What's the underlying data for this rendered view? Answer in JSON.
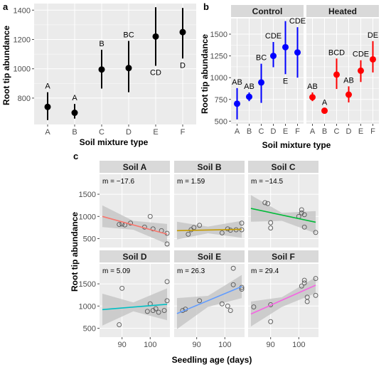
{
  "chart_data": [
    {
      "panel_label": "a",
      "type": "scatter",
      "subtype": "point-with-error-bars",
      "xlabel": "Soil mixture type",
      "ylabel": "Root tip abundance",
      "categories": [
        "A",
        "B",
        "C",
        "D",
        "E",
        "F"
      ],
      "yticks": [
        800,
        1000,
        1200,
        1400
      ],
      "ylim": [
        620,
        1445
      ],
      "points": [
        {
          "x": "A",
          "y": 740,
          "low": 650,
          "high": 840,
          "letter": "A",
          "letter_pos": "above"
        },
        {
          "x": "B",
          "y": 700,
          "low": 660,
          "high": 760,
          "letter": "A",
          "letter_pos": "above"
        },
        {
          "x": "C",
          "y": 995,
          "low": 865,
          "high": 1130,
          "letter": "B",
          "letter_pos": "above"
        },
        {
          "x": "D",
          "y": 1005,
          "low": 840,
          "high": 1190,
          "letter": "BC",
          "letter_pos": "above"
        },
        {
          "x": "E",
          "y": 1220,
          "low": 1020,
          "high": 1420,
          "letter": "CD",
          "letter_pos": "below"
        },
        {
          "x": "F",
          "y": 1250,
          "low": 1070,
          "high": 1415,
          "letter": "D",
          "letter_pos": "below"
        }
      ],
      "point_color": "#000000",
      "background": "#ebebeb",
      "grid": true
    },
    {
      "panel_label": "b",
      "type": "scatter",
      "subtype": "point-with-error-bars-faceted",
      "xlabel": "Soil mixture type",
      "ylabel": "Root tip abundance",
      "categories": [
        "A",
        "B",
        "C",
        "D",
        "E",
        "F"
      ],
      "yticks": [
        500,
        750,
        1000,
        1250,
        1500
      ],
      "ylim": [
        470,
        1680
      ],
      "grid": true,
      "facets": [
        {
          "title": "Control",
          "color": "#0000ff",
          "points": [
            {
              "x": "A",
              "y": 700,
              "low": 520,
              "high": 880,
              "letter": "AB",
              "letter_pos": "above"
            },
            {
              "x": "B",
              "y": 780,
              "low": 730,
              "high": 830,
              "letter": "AB",
              "letter_pos": "above"
            },
            {
              "x": "C",
              "y": 945,
              "low": 710,
              "high": 1160,
              "letter": "BC",
              "letter_pos": "above"
            },
            {
              "x": "D",
              "y": 1250,
              "low": 1120,
              "high": 1410,
              "letter": "CDE",
              "letter_pos": "above"
            },
            {
              "x": "E",
              "y": 1350,
              "low": 1040,
              "high": 1650,
              "letter": "E",
              "letter_pos": "below"
            },
            {
              "x": "F",
              "y": 1290,
              "low": 1000,
              "high": 1580,
              "letter": "CDE",
              "letter_pos": "above"
            }
          ]
        },
        {
          "title": "Heated",
          "color": "#ff0000",
          "points": [
            {
              "x": "A",
              "y": 775,
              "low": 730,
              "high": 830,
              "letter": "AB",
              "letter_pos": "above"
            },
            {
              "x": "B",
              "y": 620,
              "low": 600,
              "high": 645,
              "letter": "A",
              "letter_pos": "above"
            },
            {
              "x": "C",
              "y": 1035,
              "low": 870,
              "high": 1220,
              "letter": "BCD",
              "letter_pos": "above"
            },
            {
              "x": "D",
              "y": 805,
              "low": 715,
              "high": 900,
              "letter": "AB",
              "letter_pos": "above"
            },
            {
              "x": "E",
              "y": 1080,
              "low": 950,
              "high": 1200,
              "letter": "CDE",
              "letter_pos": "above"
            },
            {
              "x": "F",
              "y": 1210,
              "low": 1060,
              "high": 1420,
              "letter": "DE",
              "letter_pos": "above"
            }
          ]
        }
      ]
    },
    {
      "panel_label": "c",
      "type": "scatter",
      "subtype": "faceted-scatter-with-regression",
      "xlabel": "Seedling age (days)",
      "ylabel": "Root tip abundance",
      "xticks": [
        90,
        100
      ],
      "xlim": [
        82,
        107
      ],
      "yticks": [
        500,
        1000,
        1500
      ],
      "ylim": [
        300,
        1950
      ],
      "grid": true,
      "band_color": "#c4c4c4",
      "facets": [
        {
          "title": "Soil A",
          "slope_label": "m = −17.6",
          "color": "#f8766d",
          "fit": {
            "x0": 83,
            "y0": 1000,
            "x1": 106,
            "y1": 600
          },
          "band": {
            "upper": [
              [
                83,
                1250
              ],
              [
                94,
                900
              ],
              [
                106,
                830
              ]
            ],
            "lower": [
              [
                83,
                760
              ],
              [
                94,
                700
              ],
              [
                106,
                380
              ]
            ]
          },
          "points": [
            [
              89,
              820
            ],
            [
              90,
              830
            ],
            [
              91,
              810
            ],
            [
              93,
              850
            ],
            [
              98,
              760
            ],
            [
              100,
              1000
            ],
            [
              101,
              720
            ],
            [
              104,
              680
            ],
            [
              106,
              620
            ],
            [
              106,
              380
            ]
          ]
        },
        {
          "title": "Soil B",
          "slope_label": "m = 1.59",
          "color": "#c49a00",
          "fit": {
            "x0": 83,
            "y0": 680,
            "x1": 106,
            "y1": 710
          },
          "band": {
            "upper": [
              [
                83,
                880
              ],
              [
                94,
                770
              ],
              [
                106,
                900
              ]
            ],
            "lower": [
              [
                83,
                480
              ],
              [
                94,
                620
              ],
              [
                106,
                520
              ]
            ]
          },
          "points": [
            [
              87,
              600
            ],
            [
              88,
              700
            ],
            [
              89,
              750
            ],
            [
              91,
              800
            ],
            [
              99,
              630
            ],
            [
              101,
              720
            ],
            [
              102,
              690
            ],
            [
              104,
              700
            ],
            [
              106,
              850
            ],
            [
              106,
              700
            ]
          ]
        },
        {
          "title": "Soil C",
          "slope_label": "m = −14.5",
          "color": "#00ba38",
          "fit": {
            "x0": 83,
            "y0": 1180,
            "x1": 106,
            "y1": 870
          },
          "band": {
            "upper": [
              [
                83,
                1480
              ],
              [
                94,
                1080
              ],
              [
                106,
                1120
              ]
            ],
            "lower": [
              [
                83,
                880
              ],
              [
                94,
                900
              ],
              [
                106,
                620
              ]
            ]
          },
          "points": [
            [
              88,
              1310
            ],
            [
              89,
              1290
            ],
            [
              90,
              860
            ],
            [
              90,
              740
            ],
            [
              100,
              1000
            ],
            [
              101,
              1080
            ],
            [
              101,
              1150
            ],
            [
              102,
              1040
            ],
            [
              102,
              760
            ],
            [
              106,
              640
            ]
          ]
        },
        {
          "title": "Soil D",
          "slope_label": "m = 5.09",
          "color": "#00bfc4",
          "fit": {
            "x0": 83,
            "y0": 920,
            "x1": 106,
            "y1": 1040
          },
          "band": {
            "upper": [
              [
                83,
                1280
              ],
              [
                94,
                1080
              ],
              [
                106,
                1400
              ]
            ],
            "lower": [
              [
                83,
                560
              ],
              [
                94,
                880
              ],
              [
                106,
                680
              ]
            ]
          },
          "points": [
            [
              89,
              580
            ],
            [
              90,
              1400
            ],
            [
              99,
              880
            ],
            [
              100,
              1050
            ],
            [
              101,
              900
            ],
            [
              102,
              940
            ],
            [
              103,
              860
            ],
            [
              105,
              900
            ],
            [
              106,
              1550
            ],
            [
              106,
              1120
            ]
          ]
        },
        {
          "title": "Soil E",
          "slope_label": "m = 26.3",
          "color": "#619cff",
          "fit": {
            "x0": 83,
            "y0": 830,
            "x1": 106,
            "y1": 1440
          },
          "band": {
            "upper": [
              [
                83,
                1180
              ],
              [
                94,
                1230
              ],
              [
                106,
                1700
              ]
            ],
            "lower": [
              [
                83,
                480
              ],
              [
                94,
                980
              ],
              [
                106,
                1180
              ]
            ]
          },
          "points": [
            [
              85,
              900
            ],
            [
              86,
              930
            ],
            [
              91,
              1120
            ],
            [
              99,
              1050
            ],
            [
              101,
              1000
            ],
            [
              102,
              900
            ],
            [
              103,
              1480
            ],
            [
              103,
              1850
            ],
            [
              106,
              1420
            ],
            [
              106,
              1380
            ]
          ]
        },
        {
          "title": "Soil F",
          "slope_label": "m = 29.4",
          "color": "#f564e3",
          "fit": {
            "x0": 83,
            "y0": 820,
            "x1": 106,
            "y1": 1470
          },
          "band": {
            "upper": [
              [
                83,
                1100
              ],
              [
                94,
                1200
              ],
              [
                106,
                1650
              ]
            ],
            "lower": [
              [
                83,
                540
              ],
              [
                94,
                980
              ],
              [
                106,
                1290
              ]
            ]
          },
          "points": [
            [
              84,
              980
            ],
            [
              90,
              1030
            ],
            [
              90,
              650
            ],
            [
              101,
              1450
            ],
            [
              102,
              1580
            ],
            [
              102,
              1520
            ],
            [
              103,
              1200
            ],
            [
              103,
              1100
            ],
            [
              106,
              1620
            ],
            [
              106,
              1240
            ]
          ]
        }
      ]
    }
  ]
}
